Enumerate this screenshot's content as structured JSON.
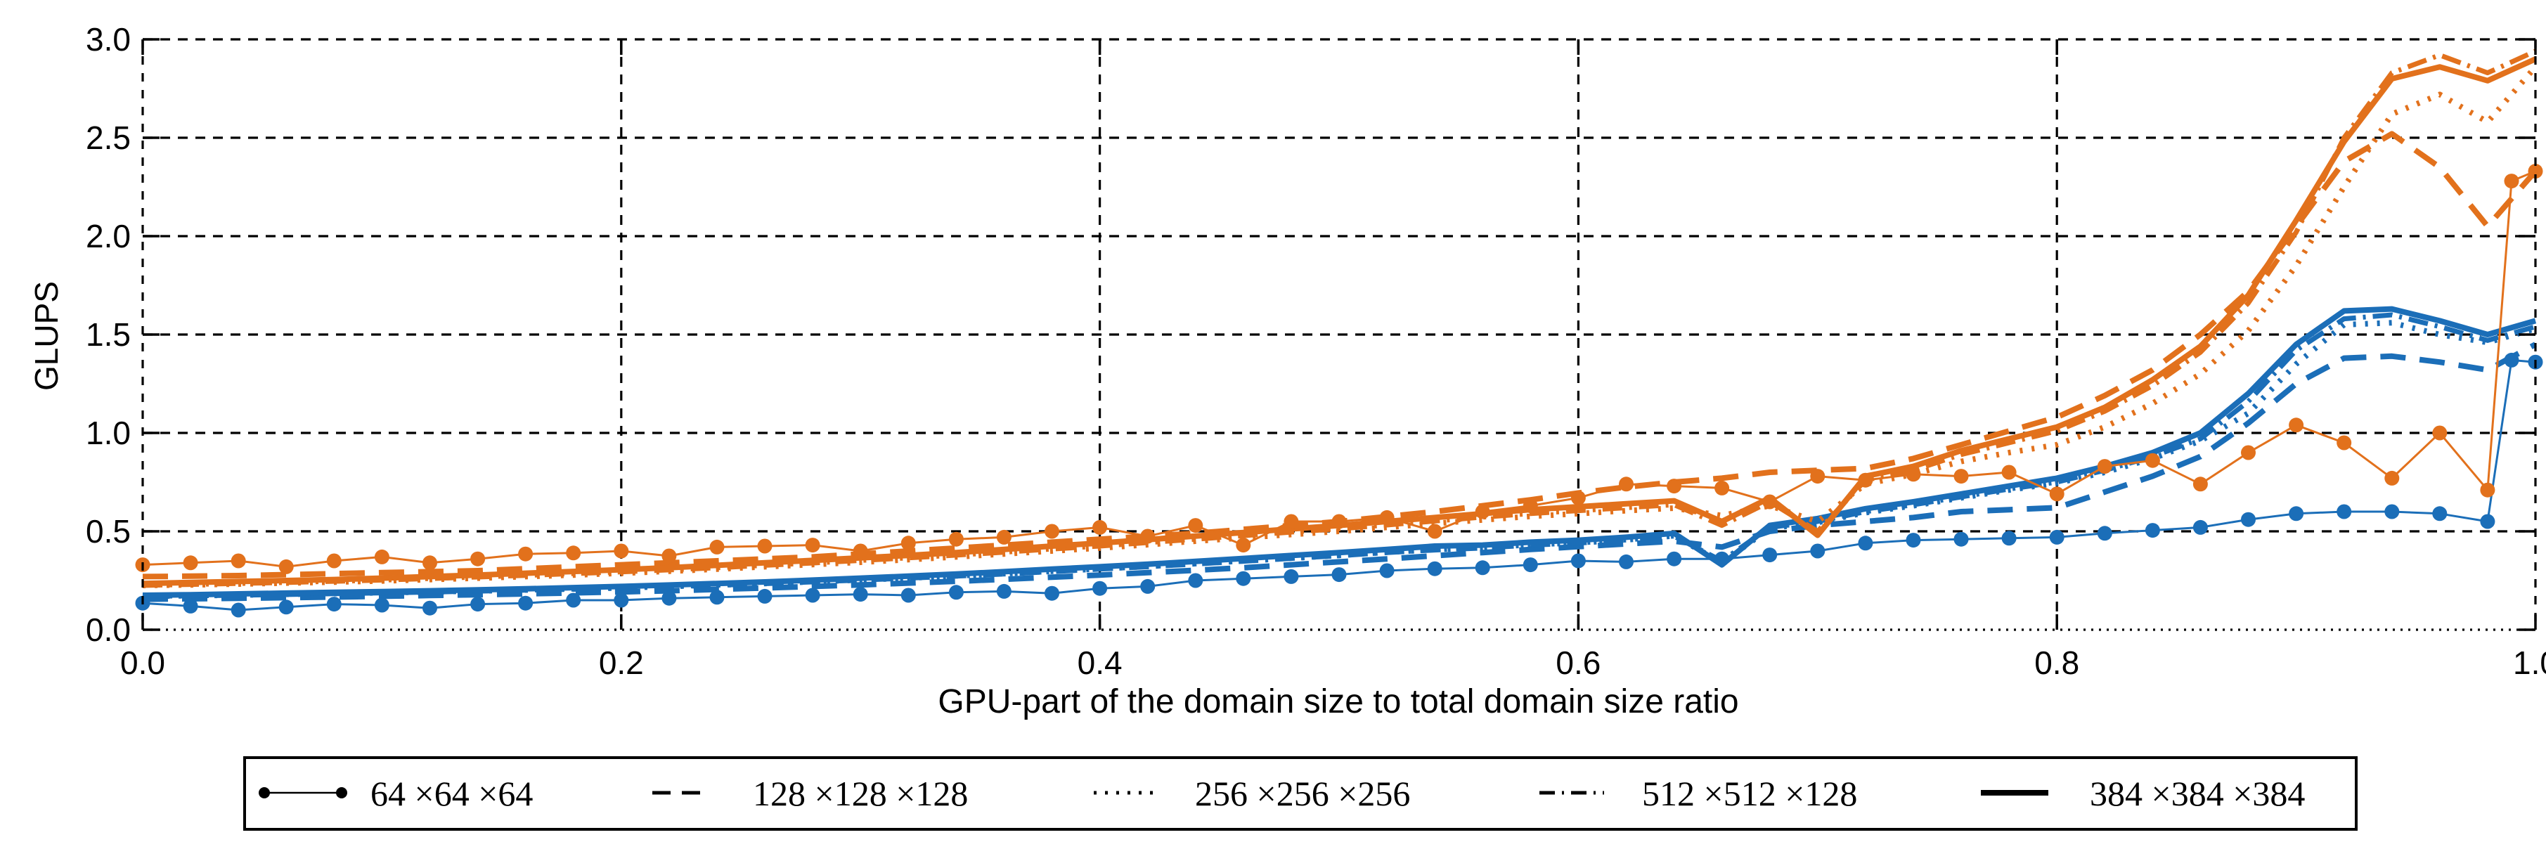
{
  "chart_data": {
    "type": "line",
    "title": "",
    "xlabel": "GPU-part of the domain size to total domain size ratio",
    "ylabel": "GLUPS",
    "xlim": [
      0.0,
      1.0
    ],
    "ylim": [
      0.0,
      3.0
    ],
    "xticks": [
      "0.0",
      "0.2",
      "0.4",
      "0.6",
      "0.8",
      "1.0"
    ],
    "yticks": [
      "0.0",
      "0.5",
      "1.0",
      "1.5",
      "2.0",
      "2.5",
      "3.0"
    ],
    "grid": "dashed black, on both axes",
    "legend_position": "below plot, horizontal boxed row",
    "colors": {
      "orange": "#e2711c",
      "blue": "#1b6eb8",
      "grid": "#000000"
    },
    "legend": [
      {
        "label": "64 ×64 ×64",
        "style": "thin line with circle markers"
      },
      {
        "label": "128 ×128 ×128",
        "style": "dashed"
      },
      {
        "label": "256 ×256 ×256",
        "style": "dotted"
      },
      {
        "label": "512 ×512 ×128",
        "style": "dash-dot"
      },
      {
        "label": "384 ×384 ×384",
        "style": "solid"
      }
    ],
    "x_default": [
      0,
      0.02,
      0.04,
      0.06,
      0.08,
      0.1,
      0.12,
      0.14,
      0.16,
      0.18,
      0.2,
      0.22,
      0.24,
      0.26,
      0.28,
      0.3,
      0.32,
      0.34,
      0.36,
      0.38,
      0.4,
      0.42,
      0.44,
      0.46,
      0.48,
      0.5,
      0.52,
      0.54,
      0.56,
      0.58,
      0.6,
      0.62,
      0.64,
      0.66,
      0.68,
      0.7,
      0.72,
      0.74,
      0.76,
      0.78,
      0.8,
      0.82,
      0.84,
      0.86,
      0.88,
      0.9,
      0.92,
      0.94,
      0.96,
      0.98,
      1.0
    ],
    "x_marker": [
      0,
      0.02,
      0.04,
      0.06,
      0.08,
      0.1,
      0.12,
      0.14,
      0.16,
      0.18,
      0.2,
      0.22,
      0.24,
      0.26,
      0.28,
      0.3,
      0.32,
      0.34,
      0.36,
      0.38,
      0.4,
      0.42,
      0.44,
      0.46,
      0.48,
      0.5,
      0.52,
      0.54,
      0.56,
      0.58,
      0.6,
      0.62,
      0.64,
      0.66,
      0.68,
      0.7,
      0.72,
      0.74,
      0.76,
      0.78,
      0.8,
      0.82,
      0.84,
      0.86,
      0.88,
      0.9,
      0.92,
      0.94,
      0.96,
      0.98,
      0.99,
      1.0
    ],
    "series": [
      {
        "name": "blue-128x128x128",
        "group": "blue",
        "size": "128 ×128 ×128",
        "style": "dashed",
        "x": "x_default",
        "y": [
          0.155,
          0.157,
          0.16,
          0.163,
          0.166,
          0.17,
          0.174,
          0.178,
          0.182,
          0.187,
          0.192,
          0.198,
          0.205,
          0.212,
          0.22,
          0.228,
          0.237,
          0.246,
          0.256,
          0.267,
          0.278,
          0.29,
          0.302,
          0.315,
          0.33,
          0.345,
          0.36,
          0.376,
          0.392,
          0.408,
          0.422,
          0.436,
          0.45,
          0.42,
          0.5,
          0.53,
          0.55,
          0.57,
          0.6,
          0.61,
          0.62,
          0.7,
          0.78,
          0.88,
          1.05,
          1.25,
          1.38,
          1.39,
          1.36,
          1.32,
          1.45
        ]
      },
      {
        "name": "blue-256x256x256",
        "group": "blue",
        "size": "256 ×256 ×256",
        "style": "dotted",
        "x": "x_default",
        "y": [
          0.17,
          0.173,
          0.176,
          0.18,
          0.184,
          0.188,
          0.192,
          0.197,
          0.202,
          0.207,
          0.213,
          0.22,
          0.227,
          0.235,
          0.244,
          0.253,
          0.263,
          0.274,
          0.285,
          0.297,
          0.31,
          0.322,
          0.336,
          0.35,
          0.364,
          0.378,
          0.394,
          0.408,
          0.418,
          0.432,
          0.443,
          0.458,
          0.478,
          0.34,
          0.515,
          0.545,
          0.595,
          0.63,
          0.67,
          0.71,
          0.745,
          0.8,
          0.87,
          0.96,
          1.1,
          1.35,
          1.55,
          1.56,
          1.5,
          1.46,
          1.53
        ]
      },
      {
        "name": "blue-512x512x128",
        "group": "blue",
        "size": "512 ×512 ×128",
        "style": "dashdot",
        "x": "x_default",
        "y": [
          0.17,
          0.172,
          0.175,
          0.179,
          0.183,
          0.187,
          0.191,
          0.196,
          0.201,
          0.206,
          0.212,
          0.219,
          0.226,
          0.234,
          0.243,
          0.252,
          0.262,
          0.272,
          0.283,
          0.295,
          0.308,
          0.32,
          0.334,
          0.348,
          0.362,
          0.376,
          0.392,
          0.405,
          0.415,
          0.43,
          0.44,
          0.455,
          0.475,
          0.35,
          0.52,
          0.55,
          0.6,
          0.635,
          0.675,
          0.715,
          0.75,
          0.81,
          0.88,
          0.97,
          1.16,
          1.42,
          1.58,
          1.6,
          1.54,
          1.47,
          1.54
        ]
      },
      {
        "name": "blue-384x384x384",
        "group": "blue",
        "size": "384 ×384 ×384",
        "style": "solid",
        "x": "x_default",
        "y": [
          0.175,
          0.178,
          0.182,
          0.186,
          0.19,
          0.194,
          0.198,
          0.203,
          0.208,
          0.214,
          0.22,
          0.227,
          0.235,
          0.243,
          0.252,
          0.262,
          0.272,
          0.283,
          0.295,
          0.308,
          0.32,
          0.333,
          0.347,
          0.362,
          0.377,
          0.392,
          0.408,
          0.425,
          0.43,
          0.445,
          0.455,
          0.47,
          0.49,
          0.33,
          0.53,
          0.565,
          0.615,
          0.65,
          0.69,
          0.73,
          0.77,
          0.83,
          0.9,
          1.0,
          1.2,
          1.45,
          1.62,
          1.63,
          1.57,
          1.5,
          1.57
        ]
      },
      {
        "name": "blue-64x64x64",
        "group": "blue",
        "size": "64 ×64 ×64",
        "style": "marker",
        "x": "x_marker",
        "y": [
          0.135,
          0.12,
          0.1,
          0.115,
          0.13,
          0.125,
          0.11,
          0.13,
          0.135,
          0.15,
          0.15,
          0.16,
          0.165,
          0.17,
          0.175,
          0.18,
          0.175,
          0.19,
          0.195,
          0.185,
          0.21,
          0.22,
          0.25,
          0.26,
          0.27,
          0.28,
          0.3,
          0.31,
          0.315,
          0.33,
          0.35,
          0.345,
          0.36,
          0.36,
          0.38,
          0.4,
          0.44,
          0.455,
          0.46,
          0.465,
          0.47,
          0.49,
          0.505,
          0.52,
          0.56,
          0.59,
          0.6,
          0.6,
          0.59,
          0.55,
          1.37,
          1.36
        ]
      },
      {
        "name": "orange-128x128x128",
        "group": "orange",
        "size": "128 ×128 ×128",
        "style": "dashed",
        "x": "x_default",
        "y": [
          0.27,
          0.272,
          0.275,
          0.28,
          0.285,
          0.29,
          0.295,
          0.3,
          0.31,
          0.32,
          0.33,
          0.34,
          0.35,
          0.36,
          0.37,
          0.385,
          0.4,
          0.415,
          0.43,
          0.445,
          0.46,
          0.475,
          0.49,
          0.51,
          0.53,
          0.55,
          0.575,
          0.6,
          0.63,
          0.66,
          0.695,
          0.725,
          0.75,
          0.77,
          0.8,
          0.81,
          0.82,
          0.87,
          0.94,
          1.01,
          1.08,
          1.19,
          1.32,
          1.5,
          1.72,
          2.05,
          2.38,
          2.52,
          2.35,
          2.05,
          2.33
        ]
      },
      {
        "name": "orange-256x256x256",
        "group": "orange",
        "size": "256 ×256 ×256",
        "style": "dotted",
        "x": "x_default",
        "y": [
          0.225,
          0.228,
          0.232,
          0.237,
          0.242,
          0.248,
          0.255,
          0.262,
          0.27,
          0.278,
          0.287,
          0.297,
          0.308,
          0.32,
          0.331,
          0.343,
          0.356,
          0.37,
          0.385,
          0.4,
          0.415,
          0.432,
          0.45,
          0.467,
          0.484,
          0.5,
          0.52,
          0.54,
          0.558,
          0.576,
          0.59,
          0.605,
          0.618,
          0.58,
          0.63,
          0.55,
          0.74,
          0.79,
          0.855,
          0.9,
          0.94,
          1.03,
          1.15,
          1.3,
          1.52,
          1.85,
          2.25,
          2.62,
          2.72,
          2.58,
          2.86
        ]
      },
      {
        "name": "orange-512x512x128",
        "group": "orange",
        "size": "512 ×512 ×128",
        "style": "dashdot",
        "x": "x_default",
        "y": [
          0.225,
          0.23,
          0.235,
          0.24,
          0.246,
          0.252,
          0.26,
          0.268,
          0.276,
          0.285,
          0.294,
          0.304,
          0.315,
          0.327,
          0.339,
          0.352,
          0.365,
          0.379,
          0.394,
          0.41,
          0.425,
          0.443,
          0.46,
          0.478,
          0.496,
          0.513,
          0.532,
          0.552,
          0.572,
          0.59,
          0.605,
          0.62,
          0.635,
          0.53,
          0.65,
          0.5,
          0.76,
          0.81,
          0.89,
          0.95,
          1.01,
          1.11,
          1.24,
          1.41,
          1.66,
          2.02,
          2.5,
          2.83,
          2.92,
          2.83,
          2.94
        ]
      },
      {
        "name": "orange-384x384x384",
        "group": "orange",
        "size": "384 ×384 ×384",
        "style": "solid",
        "x": "x_default",
        "y": [
          0.235,
          0.24,
          0.245,
          0.25,
          0.255,
          0.262,
          0.27,
          0.278,
          0.287,
          0.296,
          0.305,
          0.315,
          0.327,
          0.34,
          0.352,
          0.365,
          0.378,
          0.392,
          0.408,
          0.425,
          0.44,
          0.458,
          0.476,
          0.494,
          0.512,
          0.53,
          0.55,
          0.57,
          0.59,
          0.61,
          0.625,
          0.64,
          0.655,
          0.55,
          0.67,
          0.48,
          0.78,
          0.83,
          0.91,
          0.97,
          1.03,
          1.13,
          1.27,
          1.44,
          1.7,
          2.08,
          2.48,
          2.8,
          2.86,
          2.79,
          2.9
        ]
      },
      {
        "name": "orange-64x64x64",
        "group": "orange",
        "size": "64 ×64 ×64",
        "style": "marker",
        "x": "x_marker",
        "y": [
          0.33,
          0.34,
          0.35,
          0.32,
          0.35,
          0.37,
          0.34,
          0.36,
          0.385,
          0.39,
          0.4,
          0.375,
          0.42,
          0.425,
          0.43,
          0.4,
          0.44,
          0.46,
          0.47,
          0.5,
          0.52,
          0.475,
          0.53,
          0.43,
          0.55,
          0.55,
          0.57,
          0.5,
          0.6,
          0.63,
          0.67,
          0.74,
          0.73,
          0.72,
          0.65,
          0.78,
          0.76,
          0.79,
          0.78,
          0.8,
          0.69,
          0.83,
          0.86,
          0.74,
          0.9,
          1.04,
          0.95,
          0.77,
          1.0,
          0.71,
          2.28,
          2.33
        ]
      }
    ]
  }
}
